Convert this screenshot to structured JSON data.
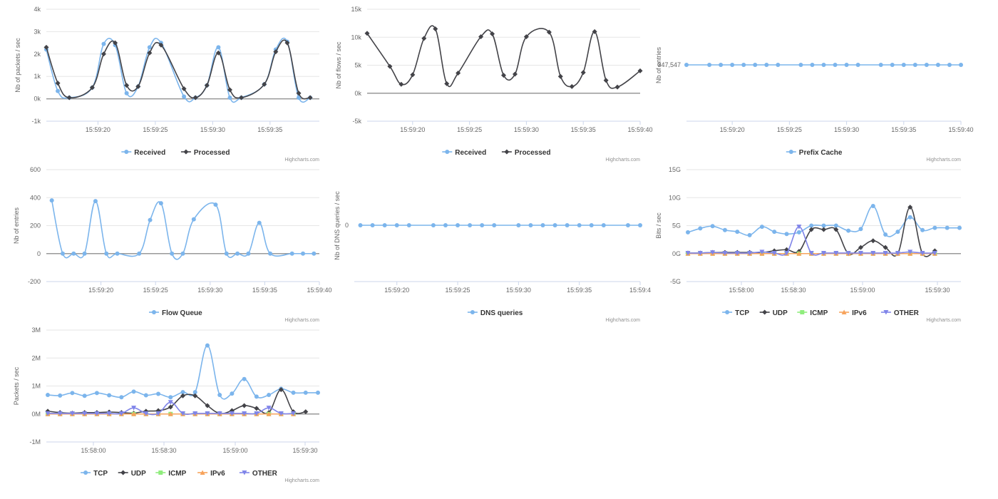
{
  "credit": "Highcharts.com",
  "colors": {
    "TCP": "#7cb5ec",
    "UDP": "#434348",
    "ICMP": "#90ed7d",
    "IPv6": "#f7a35c",
    "OTHER": "#8085e9",
    "Received": "#7cb5ec",
    "Processed": "#434348"
  },
  "chart_data": [
    {
      "id": "packets",
      "type": "line",
      "ylabel": "Nb of packets / sec",
      "xlabel": "",
      "ylim": [
        -1000,
        4000
      ],
      "yticks": [
        -1000,
        0,
        1000,
        2000,
        3000,
        4000
      ],
      "ytick_labels": [
        "-1k",
        "0k",
        "1k",
        "2k",
        "3k",
        "4k"
      ],
      "xlim": [
        15.5,
        39.3
      ],
      "xticks": [
        20,
        25,
        30,
        35
      ],
      "xtick_labels": [
        "15:59:20",
        "15:59:25",
        "15:59:30",
        "15:59:35"
      ],
      "grid": true,
      "legend": "bottom-center",
      "series": [
        {
          "name": "Received",
          "color": "#7cb5ec",
          "marker": "circle",
          "x": [
            15.5,
            16.5,
            17.5,
            19.5,
            20.5,
            21.5,
            22.5,
            23.5,
            24.5,
            25.5,
            27.5,
            28.5,
            29.5,
            30.5,
            31.5,
            32.5,
            34.5,
            35.5,
            36.5,
            37.5,
            38.5
          ],
          "y": [
            2200,
            350,
            50,
            500,
            2450,
            2400,
            250,
            550,
            2300,
            2500,
            100,
            50,
            600,
            2300,
            50,
            50,
            650,
            2200,
            2550,
            50,
            50
          ]
        },
        {
          "name": "Processed",
          "color": "#434348",
          "marker": "diamond",
          "x": [
            15.5,
            16.5,
            17.5,
            19.5,
            20.5,
            21.5,
            22.5,
            23.5,
            24.5,
            25.5,
            27.5,
            28.5,
            29.5,
            30.5,
            31.5,
            32.5,
            34.5,
            35.5,
            36.5,
            37.5,
            38.5
          ],
          "y": [
            2300,
            700,
            50,
            500,
            2000,
            2500,
            600,
            550,
            2050,
            2400,
            450,
            50,
            600,
            2050,
            400,
            50,
            650,
            2100,
            2500,
            250,
            50
          ]
        }
      ]
    },
    {
      "id": "flows",
      "type": "line",
      "ylabel": "Nb of flows / sec",
      "xlabel": "",
      "ylim": [
        -5000,
        15000
      ],
      "yticks": [
        -5000,
        0,
        5000,
        10000,
        15000
      ],
      "ytick_labels": [
        "-5k",
        "0k",
        "5k",
        "10k",
        "15k"
      ],
      "xlim": [
        16,
        40
      ],
      "xticks": [
        20,
        25,
        30,
        35,
        40
      ],
      "xtick_labels": [
        "15:59:20",
        "15:59:25",
        "15:59:30",
        "15:59:35",
        "15:59:40"
      ],
      "grid": true,
      "legend": "bottom-center",
      "legend_series": [
        "Received",
        "Processed"
      ],
      "series": [
        {
          "name": "Processed",
          "color": "#434348",
          "marker": "diamond",
          "x": [
            16,
            18,
            19,
            20,
            21,
            22,
            23,
            24,
            26,
            27,
            28,
            29,
            30,
            32,
            33,
            34,
            35,
            36,
            37,
            38,
            40
          ],
          "y": [
            10700,
            4800,
            1600,
            3300,
            9800,
            11500,
            1700,
            3600,
            10100,
            10600,
            3200,
            3400,
            10100,
            10900,
            3000,
            1200,
            3700,
            11000,
            2300,
            1100,
            4000
          ]
        }
      ]
    },
    {
      "id": "prefix",
      "type": "line",
      "ylabel": "Nb of entries",
      "xlabel": "",
      "yticks_text": [
        "347,547"
      ],
      "xlim": [
        16,
        40
      ],
      "xticks": [
        20,
        25,
        30,
        35,
        40
      ],
      "xtick_labels": [
        "15:59:20",
        "15:59:25",
        "15:59:30",
        "15:59:35",
        "15:59:40"
      ],
      "grid": true,
      "legend": "bottom-center",
      "series": [
        {
          "name": "Prefix Cache",
          "color": "#7cb5ec",
          "marker": "circle",
          "x": [
            16,
            18,
            19,
            20,
            21,
            22,
            23,
            24,
            26,
            27,
            28,
            29,
            30,
            31,
            33,
            34,
            35,
            36,
            37,
            38,
            39,
            40
          ],
          "y": [
            347547,
            347547,
            347547,
            347547,
            347547,
            347547,
            347547,
            347547,
            347547,
            347547,
            347547,
            347547,
            347547,
            347547,
            347547,
            347547,
            347547,
            347547,
            347547,
            347547,
            347547,
            347547
          ]
        }
      ]
    },
    {
      "id": "flowqueue",
      "type": "line",
      "ylabel": "Nb of entries",
      "xlabel": "",
      "ylim": [
        -200,
        600
      ],
      "yticks": [
        -200,
        0,
        200,
        400,
        600
      ],
      "ytick_labels": [
        "-200",
        "0",
        "200",
        "400",
        "600"
      ],
      "xlim": [
        15,
        40
      ],
      "xticks": [
        20,
        25,
        30,
        35,
        40
      ],
      "xtick_labels": [
        "15:59:20",
        "15:59:25",
        "15:59:30",
        "15:59:35",
        "15:59:40"
      ],
      "grid": true,
      "legend": "bottom-center",
      "series": [
        {
          "name": "Flow Queue",
          "color": "#7cb5ec",
          "marker": "circle",
          "x": [
            15.5,
            16.5,
            17.5,
            18.5,
            19.5,
            20.5,
            21.5,
            23.5,
            24.5,
            25.5,
            26.5,
            27.5,
            28.5,
            30.5,
            31.5,
            32.5,
            33.5,
            34.5,
            35.5,
            37.5,
            38.5,
            39.5
          ],
          "y": [
            380,
            0,
            0,
            0,
            375,
            0,
            0,
            0,
            240,
            360,
            0,
            0,
            245,
            350,
            0,
            0,
            0,
            220,
            0,
            0,
            0,
            0
          ]
        }
      ]
    },
    {
      "id": "dns",
      "type": "line",
      "ylabel": "Nb of DNS queries / sec",
      "xlabel": "",
      "yticks_text": [
        "0"
      ],
      "xlim": [
        16.5,
        40
      ],
      "xticks": [
        20,
        25,
        30,
        35,
        40
      ],
      "xtick_labels": [
        "15:59:20",
        "15:59:25",
        "15:59:30",
        "15:59:35",
        "15:59:4"
      ],
      "grid": true,
      "legend": "bottom-center",
      "series": [
        {
          "name": "DNS queries",
          "color": "#7cb5ec",
          "marker": "circle",
          "x": [
            17,
            18,
            19,
            20,
            21,
            23,
            24,
            25,
            26,
            27,
            28,
            30,
            31,
            32,
            33,
            34,
            35,
            36,
            37,
            39,
            40
          ],
          "y": [
            0,
            0,
            0,
            0,
            0,
            0,
            0,
            0,
            0,
            0,
            0,
            0,
            0,
            0,
            0,
            0,
            0,
            0,
            0,
            0,
            0
          ]
        }
      ]
    },
    {
      "id": "bits",
      "type": "line",
      "ylabel": "Bits / sec",
      "xlabel": "",
      "ylim": [
        -5,
        15
      ],
      "yticks": [
        -5,
        0,
        5,
        10,
        15
      ],
      "ytick_labels": [
        "-5G",
        "0G",
        "5G",
        "10G",
        "15G"
      ],
      "xlim": [
        0,
        97
      ],
      "xticks": [
        20,
        50,
        80
      ],
      "xtick_labels": [
        "15:58:00",
        "15:58:30",
        "15:59:00",
        "15:59:30"
      ],
      "xtick_positions": [
        20,
        50,
        80,
        110
      ],
      "grid": true,
      "legend": "bottom-center",
      "series": [
        {
          "name": "TCP",
          "color": "#7cb5ec",
          "marker": "circle",
          "x": [
            0,
            3,
            6,
            9,
            12,
            15,
            18,
            21,
            24,
            27,
            30,
            33,
            36,
            39,
            42,
            45,
            48,
            51,
            54,
            57,
            60,
            63,
            66
          ],
          "y": [
            3.8,
            4.5,
            4.9,
            4.2,
            3.9,
            3.3,
            4.8,
            3.9,
            3.5,
            3.8,
            5.0,
            5.0,
            5.0,
            4.1,
            4.4,
            8.5,
            3.4,
            3.9,
            6.5,
            4.2,
            4.6,
            4.6,
            4.6
          ]
        },
        {
          "name": "UDP",
          "color": "#434348",
          "marker": "diamond",
          "x": [
            0,
            3,
            6,
            9,
            12,
            15,
            18,
            21,
            24,
            27,
            30,
            33,
            36,
            39,
            42,
            45,
            48,
            51,
            54,
            57,
            60
          ],
          "y": [
            0.1,
            0.1,
            0.2,
            0.2,
            0.2,
            0.2,
            0.2,
            0.5,
            0.7,
            0.4,
            4.3,
            4.3,
            4.3,
            0,
            1.1,
            2.3,
            1.1,
            0,
            8.3,
            0,
            0.5
          ]
        },
        {
          "name": "ICMP",
          "color": "#90ed7d",
          "marker": "square",
          "x": [
            0,
            3,
            6,
            9,
            12,
            15,
            18,
            21,
            24,
            27,
            30,
            33,
            36,
            39,
            42,
            45,
            48,
            51,
            54,
            57,
            60
          ],
          "y": [
            0,
            0,
            0,
            0,
            0,
            0,
            0,
            0,
            0,
            0,
            0,
            0,
            0,
            0,
            0,
            0,
            0,
            0,
            0,
            0,
            0
          ]
        },
        {
          "name": "IPv6",
          "color": "#f7a35c",
          "marker": "triangle",
          "x": [
            0,
            3,
            6,
            9,
            12,
            15,
            18,
            21,
            24,
            27,
            30,
            33,
            36,
            39,
            42,
            45,
            48,
            51,
            54,
            57,
            60
          ],
          "y": [
            0,
            0,
            0,
            0,
            0,
            0,
            0,
            0,
            0,
            0,
            0,
            0,
            0,
            0,
            0,
            0,
            0,
            0,
            0,
            0,
            0
          ]
        },
        {
          "name": "OTHER",
          "color": "#8085e9",
          "marker": "triangle-down",
          "x": [
            0,
            3,
            6,
            9,
            12,
            15,
            18,
            21,
            24,
            27,
            30,
            33,
            36,
            39,
            42,
            45,
            48,
            51,
            54,
            57,
            60
          ],
          "y": [
            0.1,
            0.1,
            0.2,
            0.1,
            0.1,
            0.1,
            0.3,
            0.1,
            0.1,
            4.8,
            0.1,
            0.1,
            0.1,
            0.1,
            0.1,
            0.1,
            0.1,
            0.1,
            0.3,
            0.1,
            0.1
          ]
        }
      ]
    },
    {
      "id": "pps",
      "type": "line",
      "ylabel": "Packets / sec",
      "xlabel": "",
      "ylim": [
        -1,
        3
      ],
      "yticks": [
        -1,
        0,
        1,
        2,
        3
      ],
      "ytick_labels": [
        "-1M",
        "0M",
        "1M",
        "2M",
        "3M"
      ],
      "xlim": [
        0,
        97
      ],
      "xtick_labels": [
        "15:58:00",
        "15:58:30",
        "15:59:00",
        "15:59:30"
      ],
      "grid": true,
      "legend": "bottom-center",
      "series": [
        {
          "name": "TCP",
          "color": "#7cb5ec",
          "marker": "circle",
          "x": [
            0,
            3,
            6,
            9,
            12,
            15,
            18,
            21,
            24,
            27,
            30,
            33,
            36,
            39,
            42,
            45,
            48,
            51,
            54,
            57,
            60,
            63,
            66
          ],
          "y": [
            0.68,
            0.66,
            0.75,
            0.65,
            0.75,
            0.67,
            0.6,
            0.8,
            0.67,
            0.72,
            0.6,
            0.78,
            0.78,
            2.45,
            0.68,
            0.73,
            1.25,
            0.62,
            0.68,
            0.9,
            0.76,
            0.76,
            0.76
          ]
        },
        {
          "name": "UDP",
          "color": "#434348",
          "marker": "diamond",
          "x": [
            0,
            3,
            6,
            9,
            12,
            15,
            18,
            21,
            24,
            27,
            30,
            33,
            36,
            39,
            42,
            45,
            48,
            51,
            54,
            57,
            60,
            63
          ],
          "y": [
            0.1,
            0.05,
            0.03,
            0.05,
            0.05,
            0.07,
            0.05,
            0.03,
            0.1,
            0.12,
            0.25,
            0.65,
            0.65,
            0.3,
            0.02,
            0.12,
            0.3,
            0.2,
            0.05,
            0.87,
            0.08,
            0.08
          ]
        },
        {
          "name": "ICMP",
          "color": "#90ed7d",
          "marker": "square",
          "x": [
            0,
            3,
            6,
            9,
            12,
            15,
            18,
            21,
            24,
            27,
            30,
            33,
            36,
            39,
            42,
            45,
            48,
            51,
            54,
            57,
            60
          ],
          "y": [
            0,
            0,
            0,
            0,
            0,
            0,
            0,
            0,
            0,
            0,
            0,
            0,
            0,
            0,
            0,
            0,
            0,
            0,
            0,
            0,
            0
          ]
        },
        {
          "name": "IPv6",
          "color": "#f7a35c",
          "marker": "triangle",
          "x": [
            0,
            3,
            6,
            9,
            12,
            15,
            18,
            21,
            24,
            27,
            30,
            33,
            36,
            39,
            42,
            45,
            48,
            51,
            54,
            57,
            60
          ],
          "y": [
            0,
            0,
            0,
            0,
            0,
            0,
            0,
            0,
            0,
            0,
            0,
            0,
            0,
            0,
            0,
            0,
            0,
            0,
            0,
            0,
            0
          ]
        },
        {
          "name": "OTHER",
          "color": "#8085e9",
          "marker": "triangle-down",
          "x": [
            0,
            3,
            6,
            9,
            12,
            15,
            18,
            21,
            24,
            27,
            30,
            33,
            36,
            39,
            42,
            45,
            48,
            51,
            54,
            57,
            60
          ],
          "y": [
            0.02,
            0.02,
            0.02,
            0.02,
            0.02,
            0.02,
            0.02,
            0.22,
            0.02,
            0.02,
            0.42,
            0.02,
            0.02,
            0.02,
            0.02,
            0.02,
            0.02,
            0.02,
            0.22,
            0.02,
            0.02
          ]
        }
      ]
    }
  ]
}
